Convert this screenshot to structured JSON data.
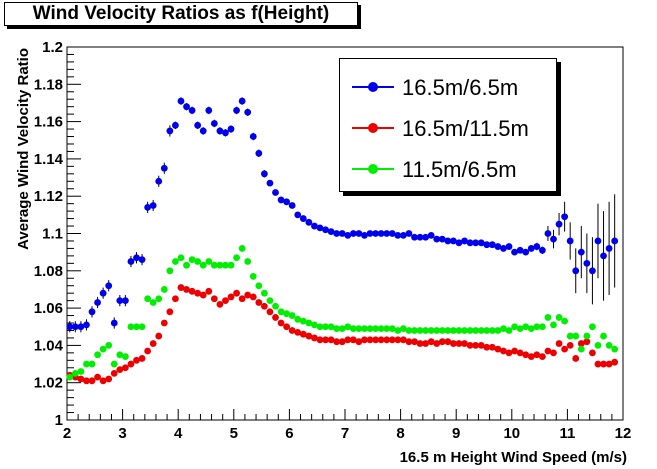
{
  "chart_data": {
    "type": "scatter",
    "title": "Wind Velocity Ratios as f(Height)",
    "xlabel": "16.5 m Height Wind Speed (m/s)",
    "ylabel": "Average Wind Velocity Ratio",
    "xlim": [
      2,
      12
    ],
    "ylim": [
      1.0,
      1.2
    ],
    "x_ticks": [
      "2",
      "3",
      "4",
      "5",
      "6",
      "7",
      "8",
      "9",
      "10",
      "11",
      "12"
    ],
    "y_ticks": [
      "1",
      "1.02",
      "1.04",
      "1.06",
      "1.08",
      "1.1",
      "1.12",
      "1.14",
      "1.16",
      "1.18",
      "1.2"
    ],
    "legend_position": "top-right",
    "series": [
      {
        "name": "16.5m/6.5m",
        "color": "#0000ee",
        "x": [
          2.05,
          2.15,
          2.25,
          2.35,
          2.45,
          2.55,
          2.65,
          2.75,
          2.85,
          2.95,
          3.05,
          3.15,
          3.25,
          3.35,
          3.45,
          3.55,
          3.65,
          3.75,
          3.85,
          3.95,
          4.05,
          4.15,
          4.25,
          4.35,
          4.45,
          4.55,
          4.65,
          4.75,
          4.85,
          4.95,
          5.05,
          5.15,
          5.25,
          5.35,
          5.45,
          5.55,
          5.65,
          5.75,
          5.85,
          5.95,
          6.05,
          6.15,
          6.25,
          6.35,
          6.45,
          6.55,
          6.65,
          6.75,
          6.85,
          6.95,
          7.05,
          7.15,
          7.25,
          7.35,
          7.45,
          7.55,
          7.65,
          7.75,
          7.85,
          7.95,
          8.05,
          8.15,
          8.25,
          8.35,
          8.45,
          8.55,
          8.65,
          8.75,
          8.85,
          8.95,
          9.05,
          9.15,
          9.25,
          9.35,
          9.45,
          9.55,
          9.65,
          9.75,
          9.85,
          9.95,
          10.05,
          10.15,
          10.25,
          10.35,
          10.45,
          10.55,
          10.65,
          10.75,
          10.85,
          10.95,
          11.05,
          11.15,
          11.25,
          11.35,
          11.45,
          11.55,
          11.65,
          11.75,
          11.85
        ],
        "y": [
          1.05,
          1.05,
          1.05,
          1.051,
          1.058,
          1.063,
          1.068,
          1.072,
          1.052,
          1.064,
          1.064,
          1.085,
          1.087,
          1.086,
          1.114,
          1.115,
          1.128,
          1.135,
          1.155,
          1.158,
          1.171,
          1.168,
          1.166,
          1.158,
          1.155,
          1.166,
          1.159,
          1.155,
          1.154,
          1.156,
          1.166,
          1.171,
          1.165,
          1.152,
          1.143,
          1.132,
          1.127,
          1.122,
          1.118,
          1.117,
          1.115,
          1.11,
          1.108,
          1.106,
          1.104,
          1.103,
          1.102,
          1.101,
          1.1,
          1.1,
          1.099,
          1.1,
          1.1,
          1.099,
          1.1,
          1.1,
          1.1,
          1.1,
          1.1,
          1.099,
          1.099,
          1.1,
          1.098,
          1.098,
          1.098,
          1.099,
          1.097,
          1.097,
          1.096,
          1.096,
          1.095,
          1.096,
          1.095,
          1.095,
          1.095,
          1.094,
          1.094,
          1.093,
          1.092,
          1.093,
          1.09,
          1.091,
          1.09,
          1.092,
          1.093,
          1.091,
          1.1,
          1.097,
          1.105,
          1.109,
          1.096,
          1.08,
          1.09,
          1.084,
          1.08,
          1.096,
          1.088,
          1.092,
          1.096
        ],
        "err": [
          0.003,
          0.003,
          0.003,
          0.003,
          0.003,
          0.003,
          0.003,
          0.003,
          0.003,
          0.003,
          0.003,
          0.003,
          0.003,
          0.003,
          0.003,
          0.003,
          0.003,
          0.003,
          0.003,
          0.002,
          0.002,
          0.002,
          0.002,
          0.002,
          0.002,
          0.002,
          0.002,
          0.002,
          0.002,
          0.002,
          0.002,
          0.002,
          0.002,
          0.002,
          0.002,
          0.002,
          0.001,
          0.001,
          0.001,
          0.001,
          0.001,
          0.001,
          0.001,
          0.001,
          0.001,
          0.001,
          0.001,
          0.001,
          0.001,
          0.001,
          0.001,
          0.001,
          0.001,
          0.001,
          0.001,
          0.001,
          0.001,
          0.001,
          0.001,
          0.001,
          0.001,
          0.001,
          0.001,
          0.001,
          0.001,
          0.001,
          0.001,
          0.001,
          0.001,
          0.001,
          0.001,
          0.001,
          0.001,
          0.001,
          0.001,
          0.001,
          0.001,
          0.001,
          0.001,
          0.001,
          0.001,
          0.001,
          0.001,
          0.001,
          0.002,
          0.002,
          0.004,
          0.005,
          0.006,
          0.008,
          0.01,
          0.012,
          0.014,
          0.016,
          0.018,
          0.02,
          0.024,
          0.025,
          0.025
        ]
      },
      {
        "name": "16.5m/11.5m",
        "color": "#ee0000",
        "x": [
          2.05,
          2.15,
          2.25,
          2.35,
          2.45,
          2.55,
          2.65,
          2.75,
          2.85,
          2.95,
          3.05,
          3.15,
          3.25,
          3.35,
          3.45,
          3.55,
          3.65,
          3.75,
          3.85,
          3.95,
          4.05,
          4.15,
          4.25,
          4.35,
          4.45,
          4.55,
          4.65,
          4.75,
          4.85,
          4.95,
          5.05,
          5.15,
          5.25,
          5.35,
          5.45,
          5.55,
          5.65,
          5.75,
          5.85,
          5.95,
          6.05,
          6.15,
          6.25,
          6.35,
          6.45,
          6.55,
          6.65,
          6.75,
          6.85,
          6.95,
          7.05,
          7.15,
          7.25,
          7.35,
          7.45,
          7.55,
          7.65,
          7.75,
          7.85,
          7.95,
          8.05,
          8.15,
          8.25,
          8.35,
          8.45,
          8.55,
          8.65,
          8.75,
          8.85,
          8.95,
          9.05,
          9.15,
          9.25,
          9.35,
          9.45,
          9.55,
          9.65,
          9.75,
          9.85,
          9.95,
          10.05,
          10.15,
          10.25,
          10.35,
          10.45,
          10.55,
          10.65,
          10.75,
          10.85,
          10.95,
          11.05,
          11.15,
          11.25,
          11.35,
          11.45,
          11.55,
          11.65,
          11.75,
          11.85
        ],
        "y": [
          1.024,
          1.023,
          1.022,
          1.021,
          1.021,
          1.023,
          1.021,
          1.022,
          1.025,
          1.027,
          1.028,
          1.03,
          1.032,
          1.033,
          1.037,
          1.041,
          1.045,
          1.052,
          1.058,
          1.065,
          1.071,
          1.07,
          1.069,
          1.068,
          1.067,
          1.069,
          1.065,
          1.062,
          1.064,
          1.066,
          1.068,
          1.065,
          1.067,
          1.066,
          1.063,
          1.061,
          1.058,
          1.055,
          1.052,
          1.05,
          1.048,
          1.047,
          1.046,
          1.045,
          1.044,
          1.043,
          1.043,
          1.043,
          1.042,
          1.042,
          1.043,
          1.043,
          1.042,
          1.043,
          1.043,
          1.043,
          1.043,
          1.043,
          1.043,
          1.043,
          1.043,
          1.042,
          1.042,
          1.041,
          1.041,
          1.042,
          1.041,
          1.042,
          1.042,
          1.041,
          1.041,
          1.041,
          1.04,
          1.04,
          1.04,
          1.039,
          1.039,
          1.038,
          1.037,
          1.036,
          1.037,
          1.036,
          1.035,
          1.034,
          1.035,
          1.034,
          1.037,
          1.036,
          1.041,
          1.038,
          1.04,
          1.033,
          1.041,
          1.042,
          1.036,
          1.03,
          1.03,
          1.03,
          1.031
        ]
      },
      {
        "name": "11.5m/6.5m",
        "color": "#00ee00",
        "x": [
          2.05,
          2.15,
          2.25,
          2.35,
          2.45,
          2.55,
          2.65,
          2.75,
          2.85,
          2.95,
          3.05,
          3.15,
          3.25,
          3.35,
          3.45,
          3.55,
          3.65,
          3.75,
          3.85,
          3.95,
          4.05,
          4.15,
          4.25,
          4.35,
          4.45,
          4.55,
          4.65,
          4.75,
          4.85,
          4.95,
          5.05,
          5.15,
          5.25,
          5.35,
          5.45,
          5.55,
          5.65,
          5.75,
          5.85,
          5.95,
          6.05,
          6.15,
          6.25,
          6.35,
          6.45,
          6.55,
          6.65,
          6.75,
          6.85,
          6.95,
          7.05,
          7.15,
          7.25,
          7.35,
          7.45,
          7.55,
          7.65,
          7.75,
          7.85,
          7.95,
          8.05,
          8.15,
          8.25,
          8.35,
          8.45,
          8.55,
          8.65,
          8.75,
          8.85,
          8.95,
          9.05,
          9.15,
          9.25,
          9.35,
          9.45,
          9.55,
          9.65,
          9.75,
          9.85,
          9.95,
          10.05,
          10.15,
          10.25,
          10.35,
          10.45,
          10.55,
          10.65,
          10.75,
          10.85,
          10.95,
          11.05,
          11.15,
          11.25,
          11.35,
          11.45,
          11.55,
          11.65,
          11.75,
          11.85
        ],
        "y": [
          1.023,
          1.025,
          1.026,
          1.03,
          1.03,
          1.035,
          1.038,
          1.04,
          1.03,
          1.035,
          1.034,
          1.05,
          1.05,
          1.05,
          1.065,
          1.063,
          1.065,
          1.07,
          1.08,
          1.085,
          1.087,
          1.083,
          1.086,
          1.085,
          1.083,
          1.085,
          1.083,
          1.083,
          1.083,
          1.083,
          1.087,
          1.092,
          1.085,
          1.077,
          1.072,
          1.068,
          1.064,
          1.061,
          1.058,
          1.057,
          1.056,
          1.054,
          1.053,
          1.052,
          1.051,
          1.05,
          1.05,
          1.05,
          1.049,
          1.049,
          1.05,
          1.049,
          1.049,
          1.049,
          1.049,
          1.049,
          1.049,
          1.049,
          1.049,
          1.048,
          1.049,
          1.048,
          1.048,
          1.048,
          1.048,
          1.048,
          1.048,
          1.048,
          1.048,
          1.048,
          1.048,
          1.048,
          1.048,
          1.048,
          1.048,
          1.048,
          1.048,
          1.048,
          1.049,
          1.048,
          1.05,
          1.049,
          1.05,
          1.049,
          1.05,
          1.05,
          1.055,
          1.051,
          1.055,
          1.053,
          1.045,
          1.045,
          1.038,
          1.045,
          1.05,
          1.04,
          1.045,
          1.04,
          1.038
        ]
      }
    ]
  }
}
